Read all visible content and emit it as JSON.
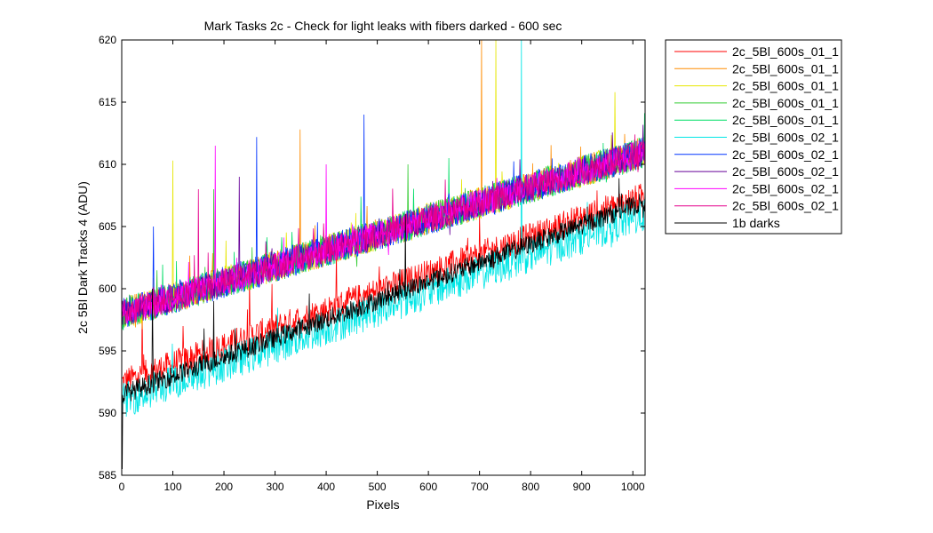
{
  "chart_data": {
    "type": "line",
    "title": "Mark Tasks 2c - Check for light leaks with fibers darked - 600 sec",
    "xlabel": "Pixels",
    "ylabel": "2c 5Bl Dark Tracks 4 (ADU)",
    "xlim": [
      0,
      1024
    ],
    "ylim": [
      585,
      620
    ],
    "x_ticks": [
      0,
      100,
      200,
      300,
      400,
      500,
      600,
      700,
      800,
      900,
      1000
    ],
    "y_ticks": [
      585,
      590,
      595,
      600,
      605,
      610,
      615,
      620
    ],
    "grid": false,
    "legend_position": "outside-right-top",
    "x_range": [
      1,
      1024
    ],
    "series": [
      {
        "name": "2c_5Bl_600s_01_1",
        "color": "#ff0000",
        "group": "low",
        "start": 592.5,
        "end": 607.5,
        "noise": 0.7,
        "spikes": [
          [
            40,
            599
          ],
          [
            120,
            597
          ],
          [
            250,
            601
          ],
          [
            420,
            603
          ],
          [
            700,
            606
          ]
        ]
      },
      {
        "name": "2c_5Bl_600s_01_1",
        "color": "#ff8c00",
        "group": "high",
        "start": 598,
        "end": 611,
        "noise": 0.8,
        "spikes": [
          [
            349,
            612.8
          ],
          [
            704,
            620
          ]
        ]
      },
      {
        "name": "2c_5Bl_600s_01_1",
        "color": "#e6e600",
        "group": "high",
        "start": 598,
        "end": 611,
        "noise": 0.8,
        "spikes": [
          [
            100,
            610.3
          ],
          [
            732,
            620
          ],
          [
            965,
            615.8
          ]
        ]
      },
      {
        "name": "2c_5Bl_600s_01_1",
        "color": "#33cc33",
        "group": "high",
        "start": 598,
        "end": 611,
        "noise": 0.8,
        "spikes": [
          [
            180,
            608
          ],
          [
            560,
            610
          ]
        ]
      },
      {
        "name": "2c_5Bl_600s_01_1",
        "color": "#00dd66",
        "group": "high",
        "start": 598,
        "end": 611,
        "noise": 0.8,
        "spikes": [
          [
            640,
            610.5
          ]
        ]
      },
      {
        "name": "2c_5Bl_600s_02_1",
        "color": "#00e6e6",
        "group": "low",
        "start": 591,
        "end": 606,
        "noise": 0.9,
        "spikes": [
          [
            782,
            620
          ]
        ]
      },
      {
        "name": "2c_5Bl_600s_02_1",
        "color": "#0033ff",
        "group": "high",
        "start": 598,
        "end": 611,
        "noise": 0.8,
        "spikes": [
          [
            62,
            605
          ],
          [
            264,
            612.2
          ],
          [
            474,
            614
          ]
        ]
      },
      {
        "name": "2c_5Bl_600s_02_1",
        "color": "#660099",
        "group": "high",
        "start": 598,
        "end": 611,
        "noise": 0.7,
        "spikes": [
          [
            230,
            609
          ]
        ]
      },
      {
        "name": "2c_5Bl_600s_02_1",
        "color": "#ff00ff",
        "group": "high",
        "start": 598,
        "end": 611,
        "noise": 0.7,
        "spikes": [
          [
            183,
            611.5
          ],
          [
            400,
            610
          ]
        ]
      },
      {
        "name": "2c_5Bl_600s_02_1",
        "color": "#e6008c",
        "group": "high",
        "start": 598,
        "end": 611,
        "noise": 0.7,
        "spikes": [
          [
            150,
            608
          ]
        ]
      },
      {
        "name": "1b darks",
        "color": "#000000",
        "group": "low",
        "start": 591.5,
        "end": 607,
        "noise": 0.5,
        "spikes": [
          [
            1,
            585.5
          ],
          [
            60,
            600
          ],
          [
            180,
            599
          ],
          [
            555,
            606
          ]
        ]
      }
    ]
  }
}
